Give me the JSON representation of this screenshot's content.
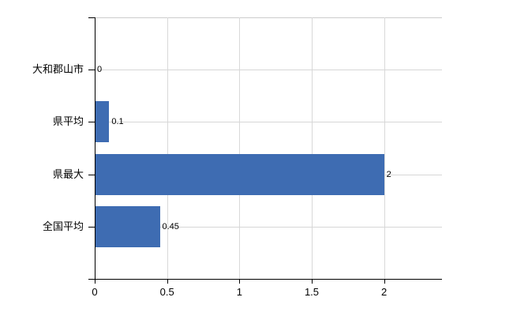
{
  "chart_data": {
    "type": "bar",
    "orientation": "horizontal",
    "title": "",
    "xlabel": "",
    "ylabel": "",
    "categories": [
      "大和郡山市",
      "県平均",
      "県最大",
      "全国平均"
    ],
    "values": [
      0,
      0.1,
      2,
      0.45
    ],
    "value_labels": [
      "0",
      "0.1",
      "2",
      "0.45"
    ],
    "xlim": [
      0,
      2.4
    ],
    "xticks": [
      0,
      0.5,
      1,
      1.5,
      2
    ],
    "xtick_labels": [
      "0",
      "0.5",
      "1",
      "1.5",
      "2"
    ],
    "grid": true,
    "legend": false,
    "colors": {
      "bar": "#3e6cb2",
      "axis": "#000000",
      "gridline": "#d9d9d9",
      "category_gridline": "#d6d6d6",
      "top_border": "#cccccc",
      "text": "#000000",
      "background": "#ffffff"
    }
  }
}
